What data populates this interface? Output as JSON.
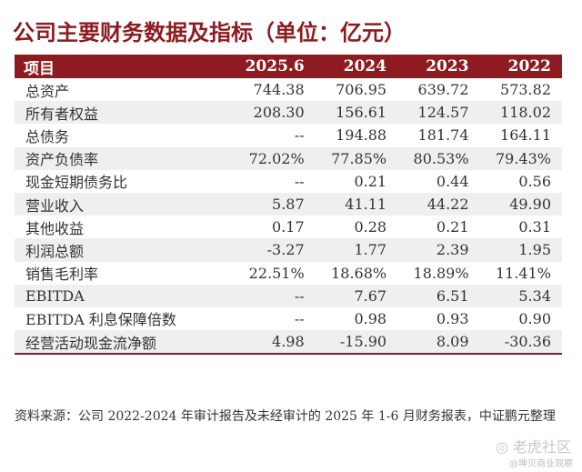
{
  "title": "公司主要财务数据及指标（单位：亿元）",
  "headers": [
    "项目",
    "2025.6",
    "2024",
    "2023",
    "2022"
  ],
  "rows": [
    [
      "总资产",
      "744.38",
      "706.95",
      "639.72",
      "573.82"
    ],
    [
      "所有者权益",
      "208.30",
      "156.61",
      "124.57",
      "118.02"
    ],
    [
      "总债务",
      "--",
      "194.88",
      "181.74",
      "164.11"
    ],
    [
      "资产负债率",
      "72.02%",
      "77.85%",
      "80.53%",
      "79.43%"
    ],
    [
      "现金短期债务比",
      "--",
      "0.21",
      "0.44",
      "0.56"
    ],
    [
      "营业收入",
      "5.87",
      "41.11",
      "44.22",
      "49.90"
    ],
    [
      "其他收益",
      "0.17",
      "0.28",
      "0.21",
      "0.31"
    ],
    [
      "利润总额",
      "-3.27",
      "1.77",
      "2.39",
      "1.95"
    ],
    [
      "销售毛利率",
      "22.51%",
      "18.68%",
      "18.89%",
      "11.41%"
    ],
    [
      "EBITDA",
      "--",
      "7.67",
      "6.51",
      "5.34"
    ],
    [
      "EBITDA 利息保障倍数",
      "--",
      "0.98",
      "0.93",
      "0.90"
    ],
    [
      "经营活动现金流净额",
      "4.98",
      "-15.90",
      "8.09",
      "-30.36"
    ]
  ],
  "source_note": "资料来源：公司 2022-2024 年审计报告及未经审计的 2025 年 1-6 月财务报表，中证鹏元整理",
  "watermark": {
    "brand": "◎ 老虎社区",
    "author": "@坤贝商业观察"
  }
}
